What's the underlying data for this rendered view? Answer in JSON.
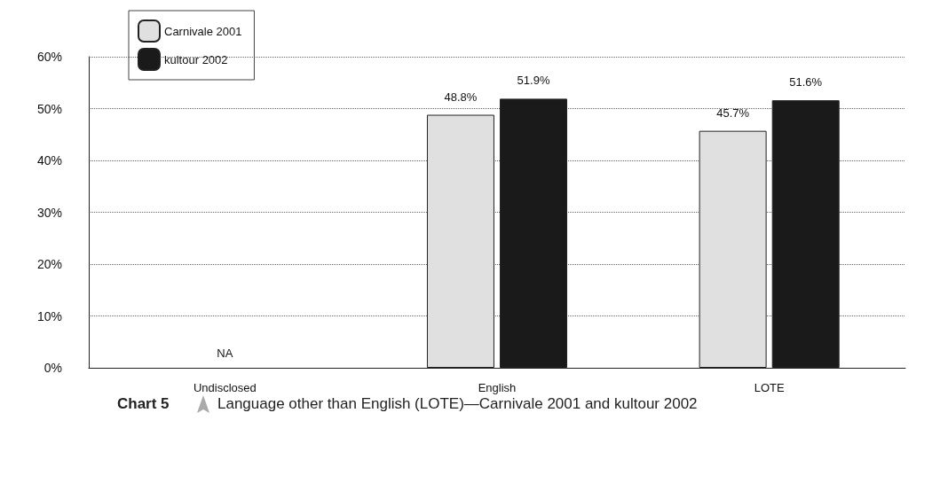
{
  "chart_data": {
    "type": "bar",
    "title": "Chart 5",
    "subtitle": "Language other than English (LOTE)—Carnivale 2001 and kultour 2002",
    "categories": [
      "Undisclosed",
      "English",
      "LOTE"
    ],
    "series": [
      {
        "name": "Carnivale 2001",
        "color": "#e0e0e0",
        "values": [
          null,
          48.8,
          45.7
        ],
        "value_labels": [
          null,
          "48.8%",
          "45.7%"
        ]
      },
      {
        "name": "kultour 2002",
        "color": "#1a1a1a",
        "values": [
          null,
          51.9,
          51.6
        ],
        "value_labels": [
          null,
          "51.9%",
          "51.6%"
        ]
      }
    ],
    "annotations": [
      "NA"
    ],
    "ylim": [
      0,
      60
    ],
    "yticks": [
      {
        "value": 0,
        "label": "0%"
      },
      {
        "value": 10,
        "label": "10%"
      },
      {
        "value": 20,
        "label": "20%"
      },
      {
        "value": 30,
        "label": "30%"
      },
      {
        "value": 40,
        "label": "40%"
      },
      {
        "value": 50,
        "label": "50%"
      },
      {
        "value": 60,
        "label": "60%"
      }
    ],
    "grid": "y",
    "legend": "top left"
  }
}
